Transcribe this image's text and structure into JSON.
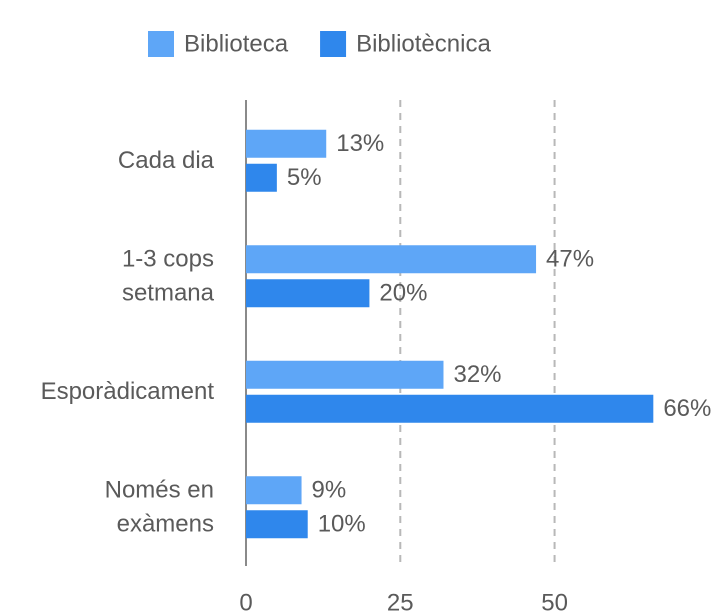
{
  "chart_data": {
    "type": "bar",
    "orientation": "horizontal",
    "categories": [
      "Cada dia",
      "1-3 cops setmana",
      "Esporàdicament",
      "Només en exàmens"
    ],
    "series": [
      {
        "name": "Biblioteca",
        "color": "#5ea6f7",
        "values": [
          13,
          47,
          32,
          9
        ],
        "value_labels": [
          "13%",
          "47%",
          "32%",
          "9%"
        ]
      },
      {
        "name": "Bibliotècnica",
        "color": "#2f87ec",
        "values": [
          5,
          20,
          66,
          10
        ],
        "value_labels": [
          "5%",
          "20%",
          "66%",
          "10%"
        ]
      }
    ],
    "xlim": [
      0,
      70
    ],
    "xticks": [
      0,
      25,
      50
    ],
    "grid": true,
    "legend": "top"
  }
}
